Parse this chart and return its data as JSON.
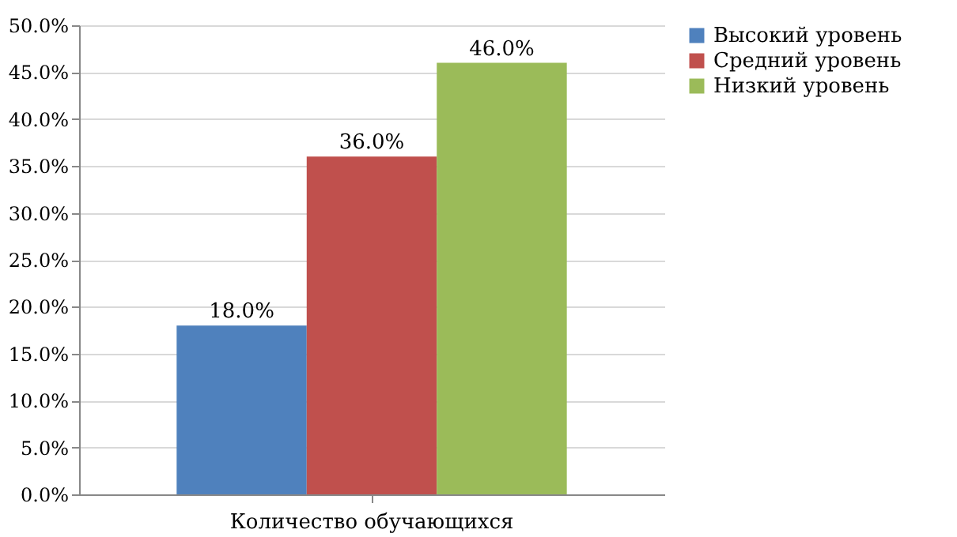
{
  "chart_data": {
    "type": "bar",
    "categories": [
      "Количество обучающихся"
    ],
    "series": [
      {
        "name": "Высокий уровень",
        "color": "#4f81bd",
        "values": [
          18
        ],
        "value_labels": [
          "18.0%"
        ]
      },
      {
        "name": "Средний уровень",
        "color": "#c0504d",
        "values": [
          36
        ],
        "value_labels": [
          "36.0%"
        ]
      },
      {
        "name": "Низкий уровень",
        "color": "#9bbb59",
        "values": [
          46
        ],
        "value_labels": [
          "46.0%"
        ]
      }
    ],
    "ylim": [
      0,
      50
    ],
    "yticks": [
      {
        "value": 0,
        "label": "0.0%"
      },
      {
        "value": 5,
        "label": "5.0%"
      },
      {
        "value": 10,
        "label": "10.0%"
      },
      {
        "value": 15,
        "label": "15.0%"
      },
      {
        "value": 20,
        "label": "20.0%"
      },
      {
        "value": 25,
        "label": "25.0%"
      },
      {
        "value": 30,
        "label": "30.0%"
      },
      {
        "value": 35,
        "label": "35.0%"
      },
      {
        "value": 40,
        "label": "40.0%"
      },
      {
        "value": 45,
        "label": "45.0%"
      },
      {
        "value": 50,
        "label": "50.0%"
      }
    ],
    "grid": "y",
    "legend": "right"
  }
}
